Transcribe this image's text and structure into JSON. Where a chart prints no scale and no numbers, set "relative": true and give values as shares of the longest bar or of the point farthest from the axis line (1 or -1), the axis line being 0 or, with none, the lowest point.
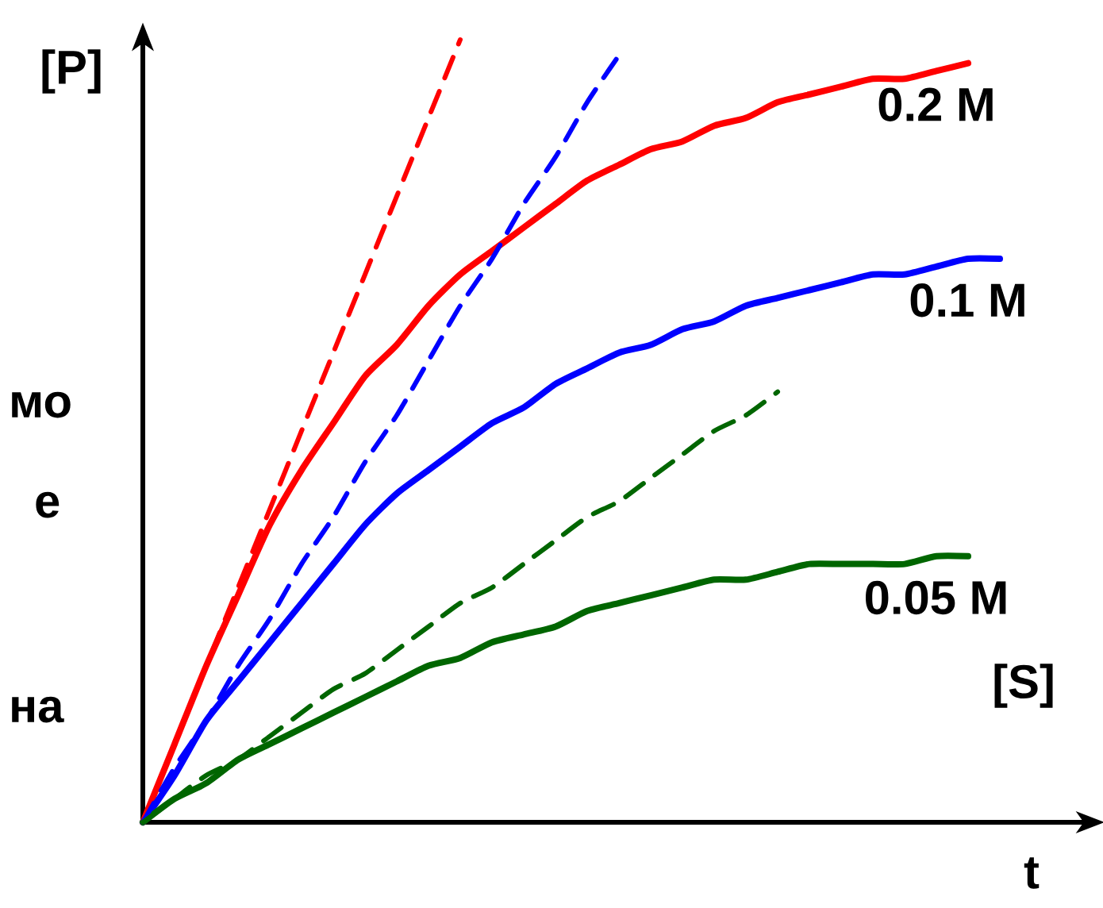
{
  "chart_data": {
    "type": "line",
    "relative": true,
    "xlabel": "t",
    "ylabel": "[P]",
    "categories": [
      null,
      null,
      null,
      null,
      null,
      null,
      null,
      null,
      null,
      null,
      null,
      null,
      null,
      null,
      null,
      null,
      null,
      null,
      null,
      null,
      null,
      null,
      null,
      null,
      null,
      null,
      null,
      null,
      null,
      null,
      null
    ],
    "series": [
      {
        "name": "0.2 M",
        "color": "#ff0000",
        "line_style": "solid",
        "values": [
          0,
          0.1,
          0.2,
          0.29,
          0.38,
          0.45,
          0.51,
          0.57,
          0.61,
          0.66,
          0.7,
          0.73,
          0.76,
          0.79,
          0.82,
          0.84,
          0.86,
          0.87,
          0.89,
          0.9,
          0.92,
          0.93,
          0.94,
          0.95,
          0.95,
          0.96,
          0.97,
          null,
          null,
          null,
          null
        ]
      },
      {
        "name": "0.1 M",
        "color": "#0000ff",
        "line_style": "solid",
        "values": [
          0,
          0.06,
          0.13,
          0.18,
          0.23,
          0.28,
          0.33,
          0.38,
          0.42,
          0.45,
          0.48,
          0.51,
          0.53,
          0.56,
          0.58,
          0.6,
          0.61,
          0.63,
          0.64,
          0.66,
          0.67,
          0.68,
          0.69,
          0.7,
          0.7,
          0.71,
          0.72,
          0.72,
          null,
          null,
          null
        ]
      },
      {
        "name": "0.05 M",
        "color": "#006600",
        "line_style": "solid",
        "values": [
          0,
          0.03,
          0.05,
          0.08,
          0.1,
          0.12,
          0.14,
          0.16,
          0.18,
          0.2,
          0.21,
          0.23,
          0.24,
          0.25,
          0.27,
          0.28,
          0.29,
          0.3,
          0.31,
          0.31,
          0.32,
          0.33,
          0.33,
          0.33,
          0.33,
          0.34,
          0.34,
          null,
          null,
          null,
          null
        ]
      },
      {
        "color": "#ff0000",
        "line_style": "dashed",
        "values": [
          0,
          0.1,
          0.2,
          0.3,
          0.4,
          0.5,
          0.6,
          0.7,
          0.8,
          0.9,
          1.0,
          null,
          null,
          null,
          null,
          null,
          null,
          null,
          null,
          null,
          null,
          null,
          null,
          null,
          null,
          null,
          null,
          null,
          null,
          null,
          null
        ]
      },
      {
        "color": "#0000ff",
        "line_style": "dashed",
        "values": [
          0,
          0.07,
          0.13,
          0.2,
          0.26,
          0.33,
          0.39,
          0.46,
          0.52,
          0.59,
          0.66,
          0.72,
          0.79,
          0.85,
          0.92,
          0.98,
          null,
          null,
          null,
          null,
          null,
          null,
          null,
          null,
          null,
          null,
          null,
          null,
          null,
          null,
          null
        ]
      },
      {
        "color": "#006600",
        "line_style": "dashed",
        "values": [
          0,
          0.03,
          0.06,
          0.08,
          0.11,
          0.14,
          0.17,
          0.19,
          0.22,
          0.25,
          0.28,
          0.3,
          0.33,
          0.36,
          0.39,
          0.41,
          0.44,
          0.47,
          0.5,
          0.52,
          0.55,
          null,
          null,
          null,
          null,
          null,
          null,
          null,
          null,
          null,
          null
        ]
      }
    ],
    "annotations": [
      "[S]",
      "мо",
      "е",
      "на"
    ]
  }
}
